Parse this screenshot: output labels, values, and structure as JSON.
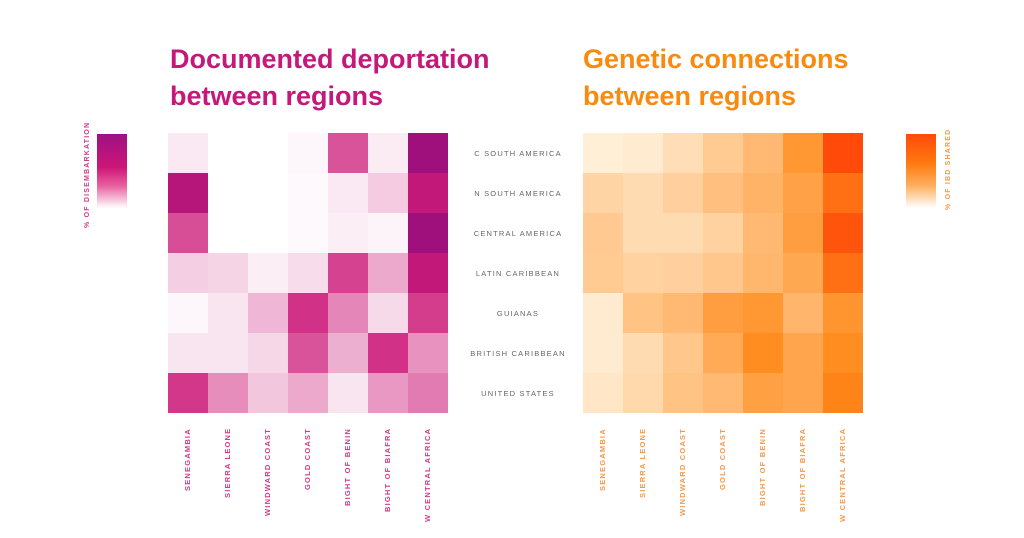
{
  "chart_data": [
    {
      "type": "heatmap",
      "title": "Documented deportation between regions",
      "title_lines": [
        "Documented deportation",
        "between regions"
      ],
      "legend_label": "% OF DISEMBARKATION",
      "color_low": "#ffffff",
      "color_high": "#a0107c",
      "color_mid": "#cc1a78",
      "accent_color": "#c4187a",
      "rows": [
        "C SOUTH AMERICA",
        "N SOUTH AMERICA",
        "CENTRAL AMERICA",
        "LATIN CARIBBEAN",
        "GUIANAS",
        "BRITISH CARIBBEAN",
        "UNITED STATES"
      ],
      "columns": [
        "SENEGAMBIA",
        "SIERRA LEONE",
        "WINDWARD COAST",
        "GOLD COAST",
        "BIGHT OF BENIN",
        "BIGHT OF BIAFRA",
        "W CENTRAL AFRICA"
      ],
      "values": [
        [
          0.08,
          0.0,
          0.0,
          0.03,
          0.6,
          0.07,
          1.0
        ],
        [
          0.9,
          0.0,
          0.0,
          0.02,
          0.08,
          0.18,
          0.85
        ],
        [
          0.62,
          0.0,
          0.0,
          0.02,
          0.06,
          0.04,
          1.0
        ],
        [
          0.17,
          0.15,
          0.06,
          0.12,
          0.66,
          0.3,
          0.85
        ],
        [
          0.03,
          0.09,
          0.25,
          0.72,
          0.42,
          0.13,
          0.68
        ],
        [
          0.09,
          0.09,
          0.14,
          0.6,
          0.28,
          0.72,
          0.38
        ],
        [
          0.7,
          0.4,
          0.2,
          0.3,
          0.09,
          0.36,
          0.46
        ]
      ],
      "value_range": [
        0,
        1
      ]
    },
    {
      "type": "heatmap",
      "title": "Genetic connections between regions",
      "title_lines": [
        "Genetic connections",
        "between regions"
      ],
      "legend_label": "% OF IBD SHARED",
      "color_low": "#fff6e4",
      "color_high": "#ff4a0a",
      "color_mid": "#ff8a1a",
      "accent_color": "#f88a10",
      "rows": [
        "C SOUTH AMERICA",
        "N SOUTH AMERICA",
        "CENTRAL AMERICA",
        "LATIN CARIBBEAN",
        "GUIANAS",
        "BRITISH CARIBBEAN",
        "UNITED STATES"
      ],
      "columns": [
        "SENEGAMBIA",
        "SIERRA LEONE",
        "WINDWARD COAST",
        "GOLD COAST",
        "BIGHT OF BENIN",
        "BIGHT OF BIAFRA",
        "W CENTRAL AFRICA"
      ],
      "values": [
        [
          0.05,
          0.08,
          0.18,
          0.32,
          0.45,
          0.7,
          1.0
        ],
        [
          0.25,
          0.2,
          0.28,
          0.4,
          0.5,
          0.62,
          0.88
        ],
        [
          0.33,
          0.2,
          0.2,
          0.27,
          0.45,
          0.65,
          0.97
        ],
        [
          0.32,
          0.27,
          0.28,
          0.35,
          0.47,
          0.58,
          0.88
        ],
        [
          0.08,
          0.38,
          0.45,
          0.65,
          0.7,
          0.48,
          0.72
        ],
        [
          0.08,
          0.2,
          0.35,
          0.56,
          0.78,
          0.6,
          0.78
        ],
        [
          0.12,
          0.22,
          0.38,
          0.45,
          0.64,
          0.6,
          0.82
        ]
      ],
      "value_range": [
        0,
        1
      ]
    }
  ]
}
